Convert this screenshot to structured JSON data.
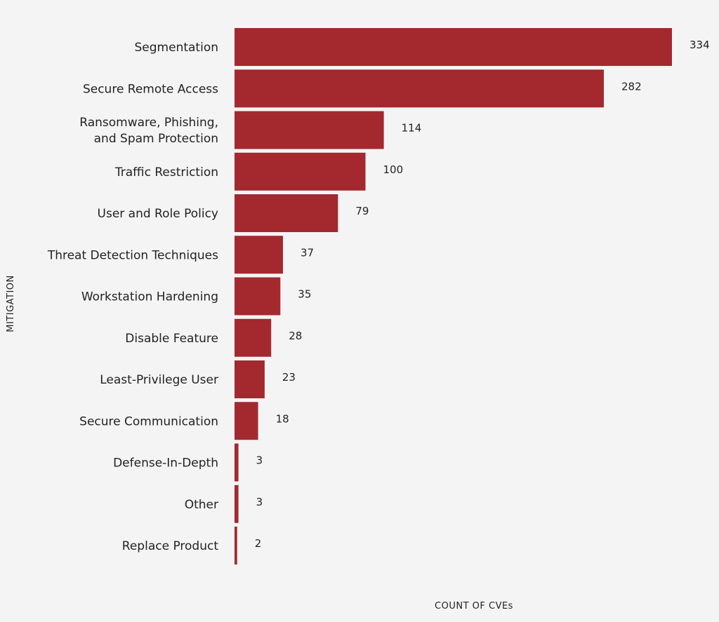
{
  "chart_data": {
    "type": "bar",
    "orientation": "horizontal",
    "categories": [
      "Segmentation",
      "Secure Remote Access",
      "Ransomware, Phishing,\nand Spam Protection",
      "Traffic Restriction",
      "User and Role Policy",
      "Threat Detection Techniques",
      "Workstation Hardening",
      "Disable Feature",
      "Least-Privilege User",
      "Secure Communication",
      "Defense-In-Depth",
      "Other",
      "Replace Product"
    ],
    "values": [
      334,
      282,
      114,
      100,
      79,
      37,
      35,
      28,
      23,
      18,
      3,
      3,
      2
    ],
    "xlabel": "COUNT OF CVEs",
    "ylabel": "MITIGATION",
    "xlim": [
      0,
      334
    ],
    "grid": false,
    "legend": "none",
    "bar_color": "#a3292f"
  }
}
